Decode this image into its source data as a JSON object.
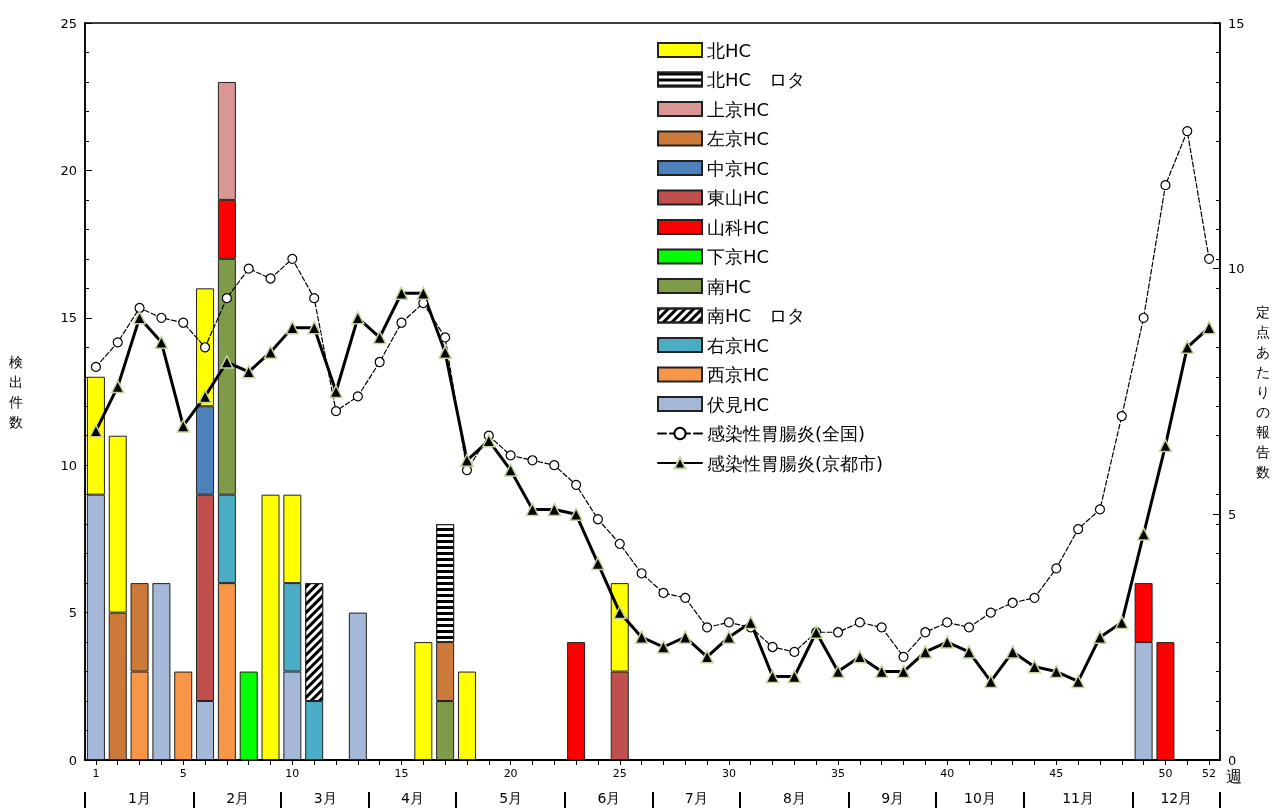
{
  "chart_data": {
    "type": "bar",
    "stacked": true,
    "xlabel": "週",
    "ylabel": "検出件数",
    "y2label": "定点あたりの報告数",
    "categories": [
      "1",
      null,
      null,
      null,
      "5",
      null,
      null,
      null,
      null,
      "10",
      null,
      null,
      null,
      null,
      "15",
      null,
      null,
      null,
      null,
      "20",
      null,
      null,
      null,
      null,
      "25",
      null,
      null,
      null,
      null,
      "30",
      null,
      null,
      null,
      null,
      "35",
      null,
      null,
      null,
      null,
      "40",
      null,
      null,
      null,
      null,
      "45",
      null,
      null,
      null,
      null,
      "50",
      null,
      "52"
    ],
    "ylim": [
      0,
      25
    ],
    "yticks": [
      0,
      5,
      10,
      15,
      20,
      25
    ],
    "y2lim": [
      0,
      15
    ],
    "y2ticks": [
      0,
      5,
      10,
      15
    ],
    "grid": false,
    "legend": "top",
    "annotations": [
      "1月",
      "2月",
      "3月",
      "4月",
      "5月",
      "6月",
      "7月",
      "8月",
      "9月",
      "10月",
      "11月",
      "12月"
    ],
    "series": [
      {
        "name": "伏見HC",
        "color": "#a6b8d8",
        "values": [
          9,
          null,
          null,
          6,
          null,
          2,
          null,
          null,
          null,
          3,
          null,
          null,
          5,
          null,
          null,
          null,
          null,
          null,
          null,
          null,
          null,
          null,
          null,
          null,
          null,
          null,
          null,
          null,
          null,
          null,
          null,
          null,
          null,
          null,
          null,
          null,
          null,
          null,
          null,
          null,
          null,
          null,
          null,
          null,
          null,
          null,
          null,
          null,
          4,
          null,
          null,
          null
        ]
      },
      {
        "name": "西京HC",
        "color": "#f79646",
        "values": [
          null,
          null,
          3,
          null,
          3,
          null,
          6,
          null,
          null,
          null,
          null,
          null,
          null,
          null,
          null,
          null,
          null,
          null,
          null,
          null,
          null,
          null,
          null,
          null,
          null,
          null,
          null,
          null,
          null,
          null,
          null,
          null,
          null,
          null,
          null,
          null,
          null,
          null,
          null,
          null,
          null,
          null,
          null,
          null,
          null,
          null,
          null,
          null,
          null,
          null,
          null,
          null
        ]
      },
      {
        "name": "右京HC",
        "color": "#4bacc6",
        "values": [
          null,
          null,
          null,
          null,
          null,
          null,
          3,
          null,
          null,
          3,
          2,
          null,
          null,
          null,
          null,
          null,
          null,
          null,
          null,
          null,
          null,
          null,
          null,
          null,
          null,
          null,
          null,
          null,
          null,
          null,
          null,
          null,
          null,
          null,
          null,
          null,
          null,
          null,
          null,
          null,
          null,
          null,
          null,
          null,
          null,
          null,
          null,
          null,
          null,
          null,
          null,
          null
        ]
      },
      {
        "name": "南HC　ロタ",
        "color": "#ffffff",
        "values": [
          null,
          null,
          null,
          null,
          null,
          null,
          null,
          null,
          null,
          null,
          4,
          null,
          null,
          null,
          null,
          null,
          null,
          null,
          null,
          null,
          null,
          null,
          null,
          null,
          null,
          null,
          null,
          null,
          null,
          null,
          null,
          null,
          null,
          null,
          null,
          null,
          null,
          null,
          null,
          null,
          null,
          null,
          null,
          null,
          null,
          null,
          null,
          null,
          null,
          null,
          null,
          null
        ]
      },
      {
        "name": "南HC",
        "color": "#7f9a48",
        "values": [
          null,
          null,
          null,
          null,
          null,
          null,
          8,
          null,
          null,
          null,
          null,
          null,
          null,
          null,
          null,
          null,
          2,
          null,
          null,
          null,
          null,
          null,
          null,
          null,
          null,
          null,
          null,
          null,
          null,
          null,
          null,
          null,
          null,
          null,
          null,
          null,
          null,
          null,
          null,
          null,
          null,
          null,
          null,
          null,
          null,
          null,
          null,
          null,
          null,
          null,
          null,
          null
        ]
      },
      {
        "name": "下京HC",
        "color": "#00ff00",
        "values": [
          null,
          null,
          null,
          null,
          null,
          null,
          null,
          3,
          null,
          null,
          null,
          null,
          null,
          null,
          null,
          null,
          null,
          null,
          null,
          null,
          null,
          null,
          null,
          null,
          null,
          null,
          null,
          null,
          null,
          null,
          null,
          null,
          null,
          null,
          null,
          null,
          null,
          null,
          null,
          null,
          null,
          null,
          null,
          null,
          null,
          null,
          null,
          null,
          null,
          null,
          null,
          null
        ]
      },
      {
        "name": "山科HC",
        "color": "#ff0000",
        "values": [
          null,
          null,
          null,
          null,
          null,
          null,
          2,
          null,
          null,
          null,
          null,
          null,
          null,
          null,
          null,
          null,
          null,
          null,
          null,
          null,
          null,
          null,
          4,
          null,
          null,
          null,
          null,
          null,
          null,
          null,
          null,
          null,
          null,
          null,
          null,
          null,
          null,
          null,
          null,
          null,
          null,
          null,
          null,
          null,
          null,
          null,
          null,
          null,
          2,
          4,
          null,
          null
        ]
      },
      {
        "name": "東山HC",
        "color": "#c0504d",
        "values": [
          null,
          null,
          null,
          null,
          null,
          7,
          null,
          null,
          null,
          null,
          null,
          null,
          null,
          null,
          null,
          null,
          null,
          null,
          null,
          null,
          null,
          null,
          null,
          null,
          3,
          null,
          null,
          null,
          null,
          null,
          null,
          null,
          null,
          null,
          null,
          null,
          null,
          null,
          null,
          null,
          null,
          null,
          null,
          null,
          null,
          null,
          null,
          null,
          null,
          null,
          null,
          null
        ]
      },
      {
        "name": "中京HC",
        "color": "#4f81bd",
        "values": [
          null,
          null,
          null,
          null,
          null,
          3,
          null,
          null,
          null,
          null,
          null,
          null,
          null,
          null,
          null,
          null,
          null,
          null,
          null,
          null,
          null,
          null,
          null,
          null,
          null,
          null,
          null,
          null,
          null,
          null,
          null,
          null,
          null,
          null,
          null,
          null,
          null,
          null,
          null,
          null,
          null,
          null,
          null,
          null,
          null,
          null,
          null,
          null,
          null,
          null,
          null,
          null
        ]
      },
      {
        "name": "左京HC",
        "color": "#cc7a3a",
        "values": [
          null,
          5,
          3,
          null,
          null,
          null,
          null,
          null,
          null,
          null,
          null,
          null,
          null,
          null,
          null,
          null,
          2,
          null,
          null,
          null,
          null,
          null,
          null,
          null,
          null,
          null,
          null,
          null,
          null,
          null,
          null,
          null,
          null,
          null,
          null,
          null,
          null,
          null,
          null,
          null,
          null,
          null,
          null,
          null,
          null,
          null,
          null,
          null,
          null,
          null,
          null,
          null
        ]
      },
      {
        "name": "上京HC",
        "color": "#d99694",
        "values": [
          null,
          null,
          null,
          null,
          null,
          null,
          4,
          null,
          null,
          null,
          null,
          null,
          null,
          null,
          null,
          null,
          null,
          null,
          null,
          null,
          null,
          null,
          null,
          null,
          null,
          null,
          null,
          null,
          null,
          null,
          null,
          null,
          null,
          null,
          null,
          null,
          null,
          null,
          null,
          null,
          null,
          null,
          null,
          null,
          null,
          null,
          null,
          null,
          null,
          null,
          null,
          null
        ]
      },
      {
        "name": "北HC　ロタ",
        "color": "#ffffff",
        "values": [
          null,
          null,
          null,
          null,
          null,
          null,
          null,
          null,
          null,
          null,
          null,
          null,
          null,
          null,
          null,
          null,
          4,
          null,
          null,
          null,
          null,
          null,
          null,
          null,
          null,
          null,
          null,
          null,
          null,
          null,
          null,
          null,
          null,
          null,
          null,
          null,
          null,
          null,
          null,
          null,
          null,
          null,
          null,
          null,
          null,
          null,
          null,
          null,
          null,
          null,
          null,
          null
        ]
      },
      {
        "name": "北HC",
        "color": "#ffff00",
        "values": [
          4,
          6,
          null,
          null,
          null,
          4,
          null,
          null,
          9,
          3,
          null,
          null,
          null,
          null,
          null,
          4,
          null,
          3,
          null,
          null,
          null,
          null,
          null,
          null,
          3,
          null,
          null,
          null,
          null,
          null,
          null,
          null,
          null,
          null,
          null,
          null,
          null,
          null,
          null,
          null,
          null,
          null,
          null,
          null,
          null,
          null,
          null,
          null,
          null,
          null,
          null,
          null
        ]
      },
      {
        "name": "感染性胃腸炎(全国)",
        "type": "line",
        "axis": "y2",
        "color": "#000000",
        "marker": "circle",
        "line_style": "dashed",
        "values": [
          8.0,
          8.5,
          9.2,
          9.0,
          8.9,
          8.4,
          9.4,
          10.0,
          9.8,
          10.2,
          9.4,
          7.1,
          7.4,
          8.1,
          8.9,
          9.3,
          8.6,
          5.9,
          6.6,
          6.2,
          6.1,
          6.0,
          5.6,
          4.9,
          4.4,
          3.8,
          3.4,
          3.3,
          2.7,
          2.8,
          2.7,
          2.3,
          2.2,
          2.6,
          2.6,
          2.8,
          2.7,
          2.1,
          2.6,
          2.8,
          2.7,
          3.0,
          3.2,
          3.3,
          3.9,
          4.7,
          5.1,
          7.0,
          9.0,
          11.7,
          12.8,
          10.2
        ]
      },
      {
        "name": "感染性胃腸炎(京都市)",
        "type": "line",
        "axis": "y2",
        "color": "#000000",
        "marker": "triangle",
        "line_style": "solid",
        "values": [
          6.7,
          7.6,
          9.0,
          8.5,
          6.8,
          7.4,
          8.1,
          7.9,
          8.3,
          8.8,
          8.8,
          7.5,
          9.0,
          8.6,
          9.5,
          9.5,
          8.3,
          6.1,
          6.5,
          5.9,
          5.1,
          5.1,
          5.0,
          4.0,
          3.0,
          2.5,
          2.3,
          2.5,
          2.1,
          2.5,
          2.8,
          1.7,
          1.7,
          2.6,
          1.8,
          2.1,
          1.8,
          1.8,
          2.2,
          2.4,
          2.2,
          1.6,
          2.2,
          1.9,
          1.8,
          1.6,
          2.5,
          2.8,
          4.6,
          6.4,
          8.4,
          8.8
        ]
      }
    ]
  }
}
